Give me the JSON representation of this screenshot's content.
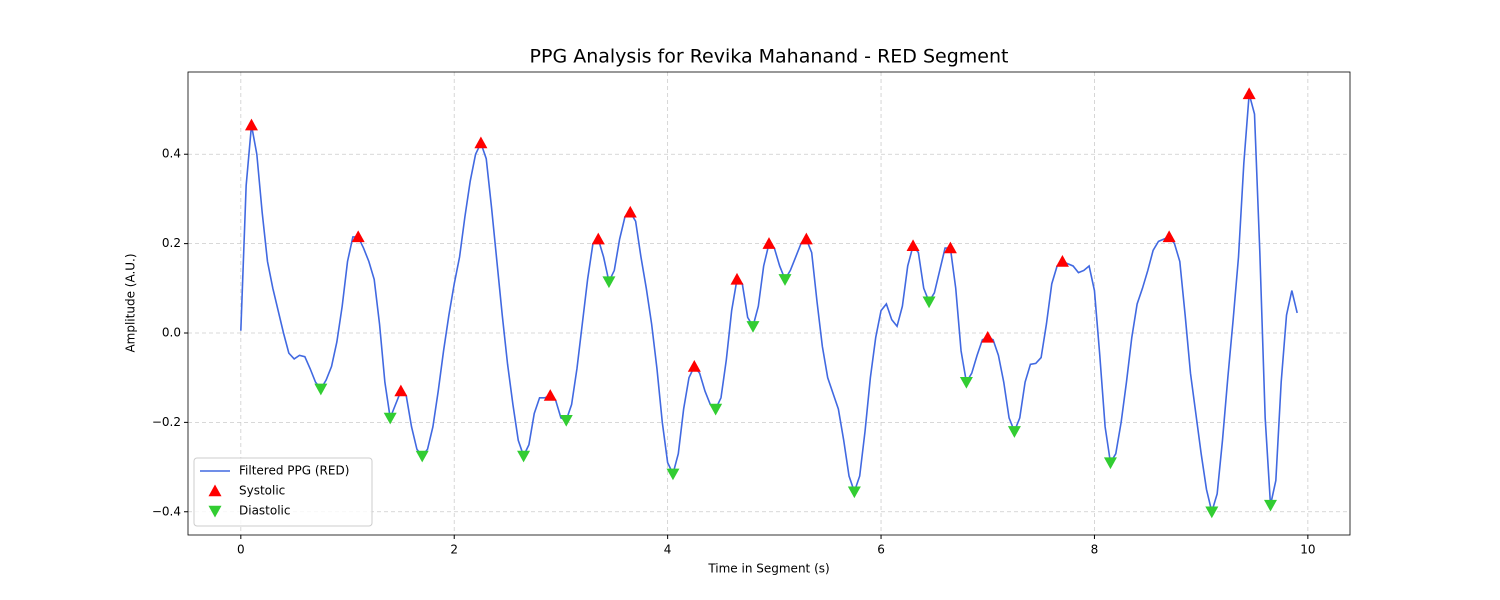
{
  "chart_data": {
    "type": "line",
    "title": "PPG Analysis for Revika Mahanand - RED Segment",
    "x_label": "Time in Segment (s)",
    "y_label": "Amplitude (A.U.)",
    "xlim": [
      -0.495,
      10.395
    ],
    "ylim": [
      -0.452,
      0.584
    ],
    "xticks": [
      0,
      2,
      4,
      6,
      8,
      10
    ],
    "yticks": [
      {
        "value": -0.4,
        "label": "−0.4"
      },
      {
        "value": -0.2,
        "label": "−0.2"
      },
      {
        "value": 0,
        "label": "0.0"
      },
      0.2,
      0.4
    ],
    "grid": true,
    "legend": "lower left",
    "series": [
      {
        "name": "Filtered PPG (RED)",
        "type": "line",
        "color": "#4169e1",
        "x": [
          0,
          0.05,
          0.1,
          0.15,
          0.2,
          0.25,
          0.3,
          0.35,
          0.4,
          0.45,
          0.5,
          0.55,
          0.6,
          0.65,
          0.7,
          0.75,
          0.8,
          0.85,
          0.9,
          0.95,
          1,
          1.05,
          1.1,
          1.15,
          1.2,
          1.25,
          1.3,
          1.35,
          1.4,
          1.45,
          1.5,
          1.55,
          1.6,
          1.65,
          1.7,
          1.75,
          1.8,
          1.85,
          1.9,
          1.95,
          2,
          2.05,
          2.1,
          2.15,
          2.2,
          2.25,
          2.3,
          2.35,
          2.4,
          2.45,
          2.5,
          2.55,
          2.6,
          2.65,
          2.7,
          2.75,
          2.8,
          2.85,
          2.9,
          2.95,
          3,
          3.05,
          3.1,
          3.15,
          3.2,
          3.25,
          3.3,
          3.35,
          3.4,
          3.45,
          3.5,
          3.55,
          3.6,
          3.65,
          3.7,
          3.75,
          3.8,
          3.85,
          3.9,
          3.95,
          4,
          4.05,
          4.1,
          4.15,
          4.2,
          4.25,
          4.3,
          4.35,
          4.4,
          4.45,
          4.5,
          4.55,
          4.6,
          4.65,
          4.7,
          4.75,
          4.8,
          4.85,
          4.9,
          4.95,
          5,
          5.05,
          5.1,
          5.15,
          5.2,
          5.25,
          5.3,
          5.35,
          5.4,
          5.45,
          5.5,
          5.55,
          5.6,
          5.65,
          5.7,
          5.75,
          5.8,
          5.85,
          5.9,
          5.95,
          6,
          6.05,
          6.1,
          6.15,
          6.2,
          6.25,
          6.3,
          6.35,
          6.4,
          6.45,
          6.5,
          6.55,
          6.6,
          6.65,
          6.7,
          6.75,
          6.8,
          6.85,
          6.9,
          6.95,
          7,
          7.05,
          7.1,
          7.15,
          7.2,
          7.25,
          7.3,
          7.35,
          7.4,
          7.45,
          7.5,
          7.55,
          7.6,
          7.65,
          7.7,
          7.75,
          7.8,
          7.85,
          7.9,
          7.95,
          8,
          8.05,
          8.1,
          8.15,
          8.2,
          8.25,
          8.3,
          8.35,
          8.4,
          8.45,
          8.5,
          8.55,
          8.6,
          8.65,
          8.7,
          8.75,
          8.8,
          8.85,
          8.9,
          8.95,
          9,
          9.05,
          9.1,
          9.15,
          9.2,
          9.25,
          9.3,
          9.35,
          9.4,
          9.45,
          9.5,
          9.55,
          9.6,
          9.65,
          9.7,
          9.75,
          9.8,
          9.85,
          9.9
        ],
        "values": [
          0.005,
          0.33,
          0.465,
          0.4,
          0.27,
          0.16,
          0.1,
          0.05,
          0.0,
          -0.045,
          -0.058,
          -0.05,
          -0.053,
          -0.08,
          -0.11,
          -0.125,
          -0.105,
          -0.075,
          -0.02,
          0.06,
          0.16,
          0.215,
          0.215,
          0.19,
          0.16,
          0.12,
          0.02,
          -0.11,
          -0.19,
          -0.16,
          -0.13,
          -0.14,
          -0.21,
          -0.26,
          -0.275,
          -0.26,
          -0.21,
          -0.13,
          -0.04,
          0.04,
          0.11,
          0.17,
          0.26,
          0.34,
          0.4,
          0.425,
          0.39,
          0.28,
          0.16,
          0.04,
          -0.07,
          -0.16,
          -0.24,
          -0.275,
          -0.25,
          -0.18,
          -0.145,
          -0.145,
          -0.14,
          -0.15,
          -0.19,
          -0.195,
          -0.16,
          -0.08,
          0.02,
          0.12,
          0.2,
          0.21,
          0.17,
          0.115,
          0.14,
          0.21,
          0.26,
          0.27,
          0.25,
          0.17,
          0.1,
          0.02,
          -0.08,
          -0.2,
          -0.29,
          -0.315,
          -0.27,
          -0.17,
          -0.1,
          -0.075,
          -0.09,
          -0.13,
          -0.16,
          -0.17,
          -0.145,
          -0.06,
          0.05,
          0.12,
          0.11,
          0.035,
          0.015,
          0.06,
          0.15,
          0.2,
          0.19,
          0.15,
          0.12,
          0.14,
          0.17,
          0.2,
          0.21,
          0.18,
          0.07,
          -0.03,
          -0.1,
          -0.135,
          -0.17,
          -0.24,
          -0.32,
          -0.355,
          -0.32,
          -0.22,
          -0.1,
          -0.01,
          0.05,
          0.065,
          0.03,
          0.015,
          0.06,
          0.15,
          0.195,
          0.18,
          0.1,
          0.07,
          0.09,
          0.14,
          0.19,
          0.19,
          0.1,
          -0.04,
          -0.11,
          -0.09,
          -0.05,
          -0.015,
          -0.01,
          -0.015,
          -0.05,
          -0.11,
          -0.19,
          -0.22,
          -0.19,
          -0.11,
          -0.07,
          -0.068,
          -0.055,
          0.02,
          0.11,
          0.15,
          0.16,
          0.155,
          0.15,
          0.135,
          0.14,
          0.15,
          0.095,
          -0.05,
          -0.21,
          -0.29,
          -0.27,
          -0.2,
          -0.11,
          -0.01,
          0.065,
          0.1,
          0.14,
          0.185,
          0.205,
          0.21,
          0.215,
          0.2,
          0.16,
          0.04,
          -0.09,
          -0.18,
          -0.27,
          -0.35,
          -0.4,
          -0.36,
          -0.24,
          -0.1,
          0.03,
          0.17,
          0.38,
          0.535,
          0.49,
          0.18,
          -0.19,
          -0.385,
          -0.33,
          -0.11,
          0.04,
          0.095,
          0.045
        ]
      },
      {
        "name": "Systolic",
        "type": "scatter",
        "marker": "triangle-up",
        "color": "#ff0000",
        "x": [
          0.1,
          1.1,
          1.5,
          2.25,
          2.9,
          3.35,
          3.65,
          4.25,
          4.65,
          4.95,
          5.3,
          6.3,
          6.65,
          7.0,
          7.7,
          8.7,
          9.45
        ],
        "values": [
          0.465,
          0.215,
          -0.13,
          0.425,
          -0.14,
          0.21,
          0.27,
          -0.075,
          0.12,
          0.2,
          0.21,
          0.195,
          0.19,
          -0.01,
          0.16,
          0.215,
          0.535
        ]
      },
      {
        "name": "Diastolic",
        "type": "scatter",
        "marker": "triangle-down",
        "color": "#32cd32",
        "x": [
          0.75,
          1.4,
          1.7,
          2.65,
          3.05,
          3.45,
          4.05,
          4.45,
          4.8,
          5.1,
          5.75,
          6.45,
          6.8,
          7.25,
          8.15,
          9.1,
          9.65
        ],
        "values": [
          -0.125,
          -0.19,
          -0.275,
          -0.275,
          -0.195,
          0.115,
          -0.315,
          -0.17,
          0.015,
          0.12,
          -0.355,
          0.07,
          -0.11,
          -0.22,
          -0.29,
          -0.4,
          -0.385
        ]
      }
    ]
  }
}
